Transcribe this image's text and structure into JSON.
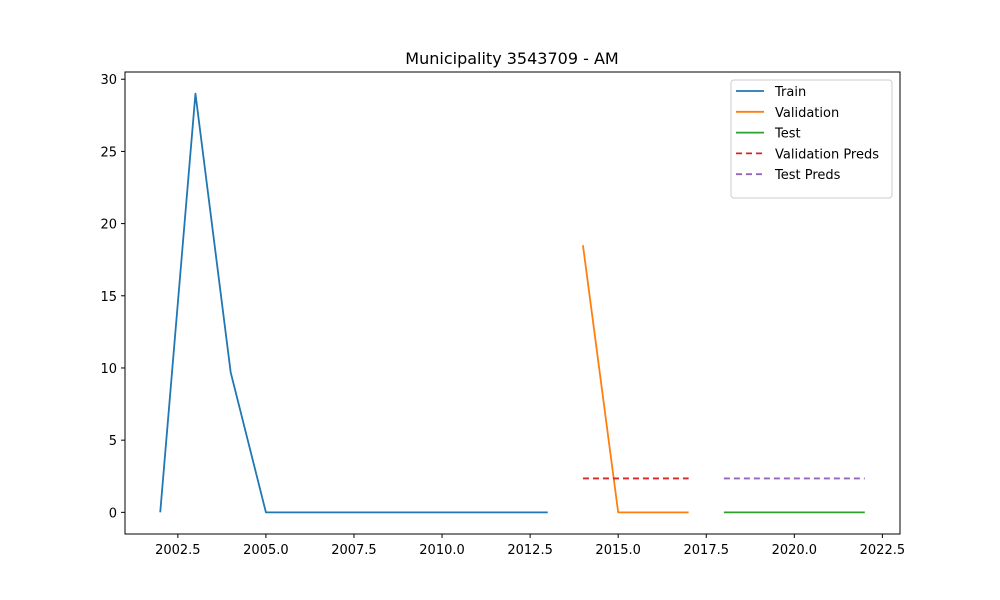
{
  "chart_data": {
    "type": "line",
    "title": "Municipality 3543709 - AM",
    "xlabel": "",
    "ylabel": "",
    "xlim": [
      2001.0,
      2023.0
    ],
    "ylim": [
      -1.5,
      30.5
    ],
    "x_ticks": [
      2002.5,
      2005.0,
      2007.5,
      2010.0,
      2012.5,
      2015.0,
      2017.5,
      2020.0,
      2022.5
    ],
    "x_tick_labels": [
      "2002.5",
      "2005.0",
      "2007.5",
      "2010.0",
      "2012.5",
      "2015.0",
      "2017.5",
      "2020.0",
      "2022.5"
    ],
    "y_ticks": [
      0,
      5,
      10,
      15,
      20,
      25,
      30
    ],
    "y_tick_labels": [
      "0",
      "5",
      "10",
      "15",
      "20",
      "25",
      "30"
    ],
    "grid": false,
    "legend_position": "top-right",
    "series": [
      {
        "name": "Train",
        "color": "#1f77b4",
        "style": "solid",
        "x": [
          2002,
          2003,
          2004,
          2005,
          2006,
          2007,
          2008,
          2009,
          2010,
          2011,
          2012,
          2013
        ],
        "y": [
          0,
          29.0,
          9.7,
          0,
          0,
          0,
          0,
          0,
          0,
          0,
          0,
          0
        ]
      },
      {
        "name": "Validation",
        "color": "#ff7f0e",
        "style": "solid",
        "x": [
          2014,
          2015,
          2016,
          2017
        ],
        "y": [
          18.5,
          0,
          0,
          0
        ]
      },
      {
        "name": "Test",
        "color": "#2ca02c",
        "style": "solid",
        "x": [
          2018,
          2019,
          2020,
          2021,
          2022
        ],
        "y": [
          0,
          0,
          0,
          0,
          0
        ]
      },
      {
        "name": "Validation Preds",
        "color": "#d62728",
        "style": "dashed",
        "x": [
          2014,
          2015,
          2016,
          2017
        ],
        "y": [
          2.35,
          2.35,
          2.35,
          2.35
        ]
      },
      {
        "name": "Test Preds",
        "color": "#9467bd",
        "style": "dashed",
        "x": [
          2018,
          2019,
          2020,
          2021,
          2022
        ],
        "y": [
          2.35,
          2.35,
          2.35,
          2.35,
          2.35
        ]
      }
    ]
  }
}
